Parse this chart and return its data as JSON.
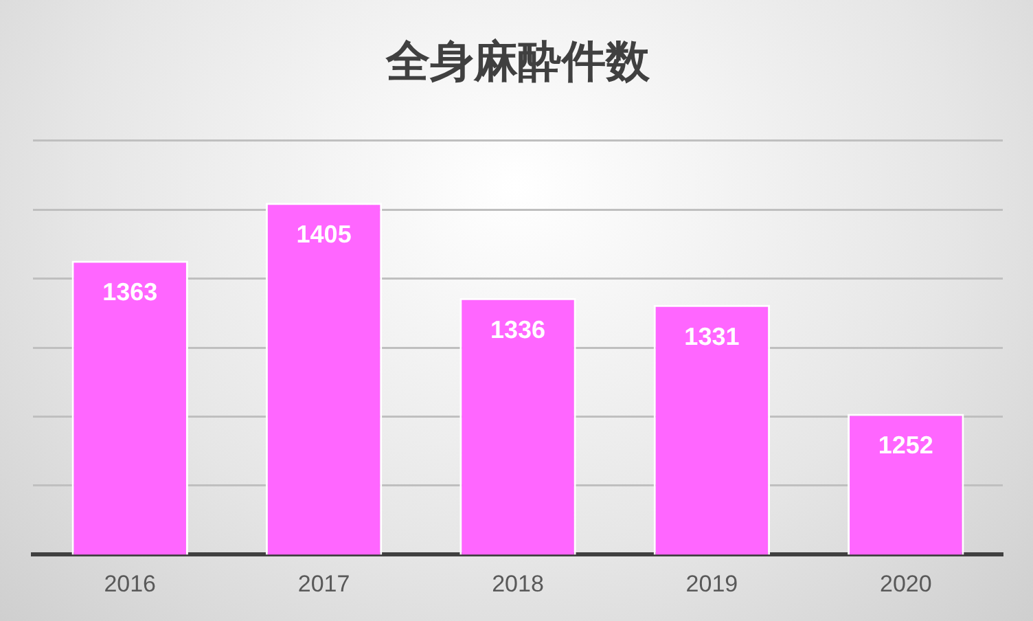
{
  "chart_data": {
    "type": "bar",
    "title": "全身麻酔件数",
    "categories": [
      "2016",
      "2017",
      "2018",
      "2019",
      "2020"
    ],
    "values": [
      1363,
      1405,
      1336,
      1331,
      1252
    ],
    "color": "#ff66ff",
    "ylim": [
      1150,
      1450
    ],
    "grid": "y",
    "tick_labels": "x",
    "data_labels": true,
    "legend": false
  }
}
